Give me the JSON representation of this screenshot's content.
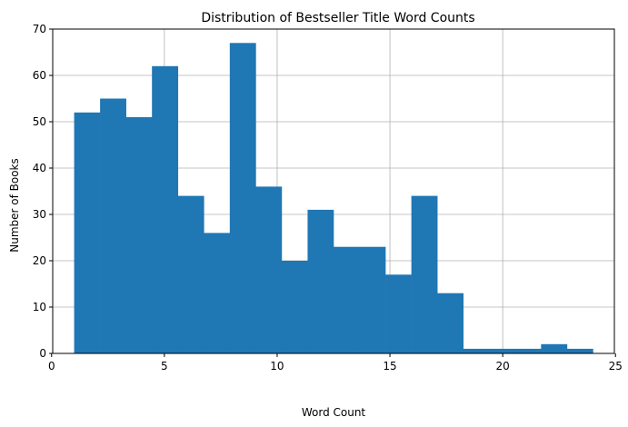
{
  "chart_data": {
    "type": "bar",
    "title": "Distribution of Bestseller Title Word Counts",
    "xlabel": "Word Count",
    "ylabel": "Number of Books",
    "xlim": [
      0.05,
      24.95
    ],
    "ylim": [
      0,
      70
    ],
    "xticks": [
      0,
      5,
      10,
      15,
      20,
      25
    ],
    "yticks": [
      0,
      10,
      20,
      30,
      40,
      50,
      60,
      70
    ],
    "grid": true,
    "bar_color": "#1f77b4",
    "bin_edges": [
      1.0,
      2.15,
      3.3,
      4.45,
      5.6,
      6.75,
      7.9,
      9.05,
      10.2,
      11.35,
      12.5,
      13.65,
      14.8,
      15.95,
      17.1,
      18.25,
      19.4,
      20.55,
      21.7,
      22.85,
      24.0
    ],
    "values": [
      52,
      55,
      51,
      62,
      34,
      26,
      67,
      36,
      20,
      31,
      23,
      23,
      17,
      34,
      13,
      1,
      1,
      1,
      2,
      1
    ]
  }
}
